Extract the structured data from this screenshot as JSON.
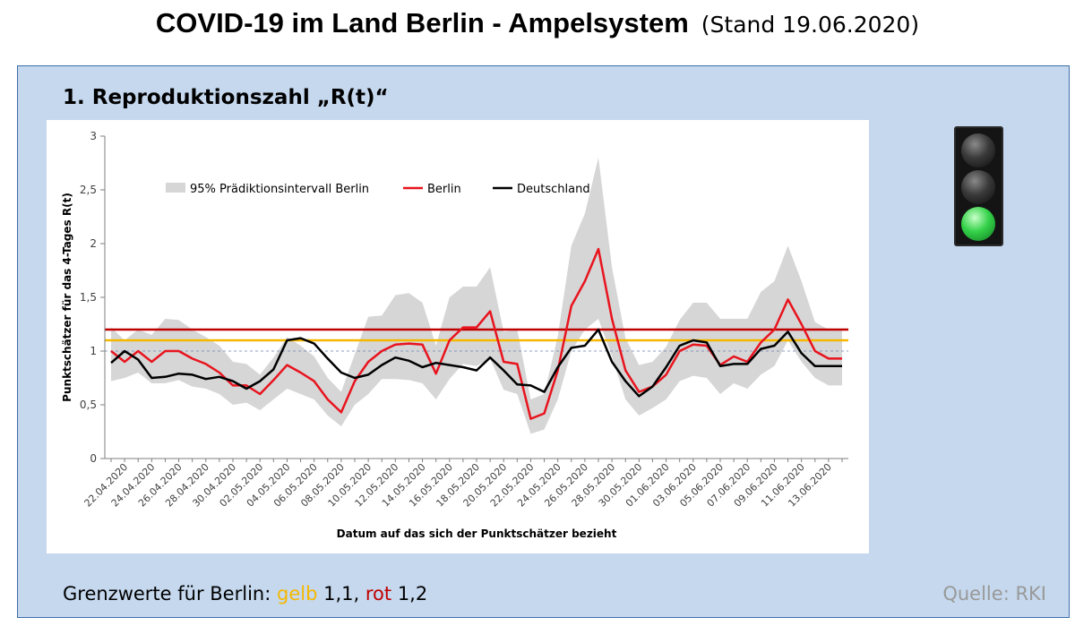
{
  "header": {
    "title": "COVID-19 im Land Berlin - Ampelsystem",
    "date_label": "(Stand 19.06.2020)"
  },
  "section": {
    "title": "1. Reproduktionszahl „R(t)“"
  },
  "traffic_light": {
    "active": "green",
    "colors": {
      "off": "#333333",
      "green": "#35d24a"
    }
  },
  "footer": {
    "thresholds_label": "Grenzwerte für Berlin:",
    "yellow_word": "gelb",
    "yellow_value": "1,1,",
    "red_word": "rot",
    "red_value": "1,2",
    "source": "Quelle: RKI",
    "colors": {
      "yellow": "#f5b800",
      "red": "#c00000"
    }
  },
  "chart_data": {
    "type": "line",
    "xlabel": "Datum auf das sich der Punktschätzer bezieht",
    "ylabel": "Punktschätzer für das 4-Tages R(t)",
    "ylim": [
      0,
      3
    ],
    "yticks": [
      {
        "v": 0,
        "label": "0"
      },
      {
        "v": 0.5,
        "label": "0,5"
      },
      {
        "v": 1,
        "label": "1"
      },
      {
        "v": 1.5,
        "label": "1,5"
      },
      {
        "v": 2,
        "label": "2"
      },
      {
        "v": 2.5,
        "label": "2,5"
      },
      {
        "v": 3,
        "label": "3"
      }
    ],
    "x": [
      "21.04.2020",
      "22.04.2020",
      "23.04.2020",
      "24.04.2020",
      "25.04.2020",
      "26.04.2020",
      "27.04.2020",
      "28.04.2020",
      "29.04.2020",
      "30.04.2020",
      "01.05.2020",
      "02.05.2020",
      "03.05.2020",
      "04.05.2020",
      "05.05.2020",
      "06.05.2020",
      "07.05.2020",
      "08.05.2020",
      "09.05.2020",
      "10.05.2020",
      "11.05.2020",
      "12.05.2020",
      "13.05.2020",
      "14.05.2020",
      "15.05.2020",
      "16.05.2020",
      "17.05.2020",
      "18.05.2020",
      "19.05.2020",
      "20.05.2020",
      "21.05.2020",
      "22.05.2020",
      "23.05.2020",
      "24.05.2020",
      "25.05.2020",
      "26.05.2020",
      "27.05.2020",
      "28.05.2020",
      "29.05.2020",
      "30.05.2020",
      "31.05.2020",
      "01.06.2020",
      "02.06.2020",
      "03.06.2020",
      "04.06.2020",
      "05.06.2020",
      "06.06.2020",
      "07.06.2020",
      "08.06.2020",
      "09.06.2020",
      "10.06.2020",
      "11.06.2020",
      "12.06.2020",
      "13.06.2020",
      "14.06.2020"
    ],
    "x_tick_labels": [
      "22.04.2020",
      "24.04.2020",
      "26.04.2020",
      "28.04.2020",
      "30.04.2020",
      "02.05.2020",
      "04.05.2020",
      "06.05.2020",
      "08.05.2020",
      "10.05.2020",
      "12.05.2020",
      "14.05.2020",
      "16.05.2020",
      "18.05.2020",
      "20.05.2020",
      "22.05.2020",
      "24.05.2020",
      "26.05.2020",
      "28.05.2020",
      "30.05.2020",
      "01.06.2020",
      "03.06.2020",
      "05.06.2020",
      "07.06.2020",
      "09.06.2020",
      "11.06.2020",
      "13.06.2020"
    ],
    "series": [
      {
        "name": "Berlin",
        "color": "#e8141e",
        "values": [
          1.0,
          0.9,
          1.0,
          0.9,
          1.0,
          1.0,
          0.93,
          0.88,
          0.8,
          0.68,
          0.68,
          0.6,
          0.73,
          0.87,
          0.8,
          0.72,
          0.55,
          0.43,
          0.72,
          0.9,
          1.0,
          1.06,
          1.07,
          1.06,
          0.79,
          1.1,
          1.22,
          1.22,
          1.37,
          0.9,
          0.88,
          0.37,
          0.42,
          0.82,
          1.42,
          1.65,
          1.95,
          1.3,
          0.82,
          0.62,
          0.67,
          0.78,
          1.0,
          1.06,
          1.05,
          0.87,
          0.95,
          0.9,
          1.08,
          1.2,
          1.48,
          1.25,
          1.0,
          0.93,
          0.93
        ]
      },
      {
        "name": "Deutschland",
        "color": "#000000",
        "values": [
          0.89,
          1.0,
          0.92,
          0.75,
          0.76,
          0.79,
          0.78,
          0.74,
          0.76,
          0.72,
          0.65,
          0.72,
          0.83,
          1.1,
          1.12,
          1.07,
          0.93,
          0.8,
          0.75,
          0.78,
          0.87,
          0.94,
          0.91,
          0.85,
          0.89,
          0.87,
          0.85,
          0.82,
          0.94,
          0.82,
          0.69,
          0.68,
          0.62,
          0.85,
          1.03,
          1.05,
          1.2,
          0.9,
          0.72,
          0.58,
          0.67,
          0.85,
          1.05,
          1.1,
          1.08,
          0.86,
          0.88,
          0.88,
          1.02,
          1.05,
          1.18,
          0.98,
          0.86,
          0.86,
          0.86
        ]
      }
    ],
    "band": {
      "name": "95% Prädiktionsintervall Berlin",
      "color": "#d6d6d6",
      "lower": [
        0.72,
        0.75,
        0.8,
        0.7,
        0.7,
        0.73,
        0.67,
        0.65,
        0.6,
        0.5,
        0.52,
        0.45,
        0.55,
        0.65,
        0.6,
        0.55,
        0.4,
        0.3,
        0.5,
        0.6,
        0.74,
        0.74,
        0.73,
        0.7,
        0.55,
        0.74,
        0.88,
        0.86,
        0.93,
        0.64,
        0.6,
        0.23,
        0.27,
        0.55,
        1.0,
        1.2,
        1.3,
        0.95,
        0.55,
        0.4,
        0.47,
        0.55,
        0.72,
        0.77,
        0.75,
        0.6,
        0.7,
        0.65,
        0.78,
        0.86,
        1.1,
        0.9,
        0.75,
        0.68,
        0.68
      ],
      "upper": [
        1.22,
        1.1,
        1.2,
        1.15,
        1.3,
        1.29,
        1.2,
        1.13,
        1.05,
        0.9,
        0.88,
        0.78,
        0.94,
        1.13,
        1.05,
        0.95,
        0.75,
        0.62,
        0.97,
        1.32,
        1.33,
        1.52,
        1.54,
        1.45,
        1.05,
        1.5,
        1.6,
        1.6,
        1.78,
        1.18,
        1.2,
        0.55,
        0.6,
        1.14,
        1.98,
        2.28,
        2.8,
        1.78,
        1.12,
        0.87,
        0.9,
        1.04,
        1.29,
        1.45,
        1.45,
        1.3,
        1.3,
        1.3,
        1.55,
        1.65,
        1.98,
        1.65,
        1.27,
        1.2,
        1.2
      ]
    },
    "reference_lines": [
      {
        "name": "rot",
        "y": 1.2,
        "color": "#c00000",
        "style": "solid"
      },
      {
        "name": "gelb",
        "y": 1.1,
        "color": "#f5b800",
        "style": "solid"
      },
      {
        "name": "1",
        "y": 1.0,
        "color": "#6a7fb3",
        "style": "dashed"
      }
    ],
    "legend": {
      "placement": "top-left",
      "items": [
        "95% Prädiktionsintervall Berlin",
        "Berlin",
        "Deutschland"
      ]
    },
    "grid": false
  }
}
